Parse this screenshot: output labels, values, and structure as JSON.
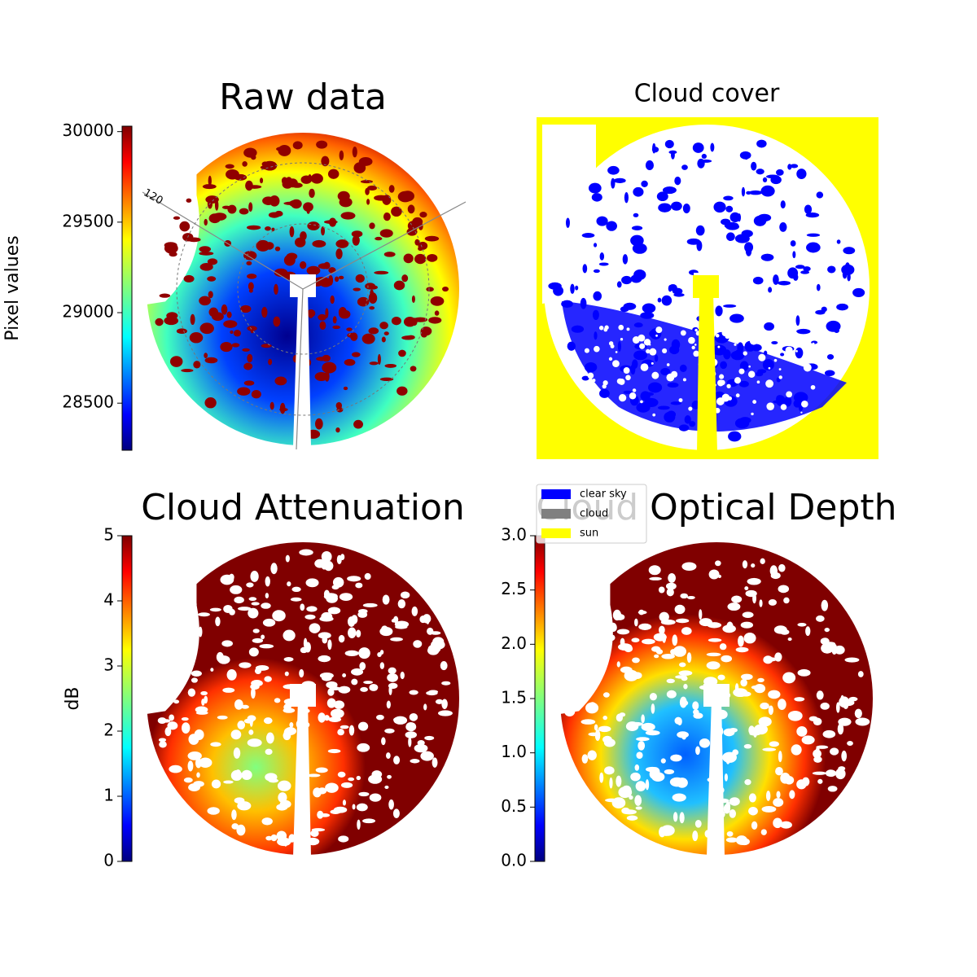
{
  "chart_data": [
    {
      "type": "image",
      "title": "Raw data",
      "colorbar_label": "Pixel values",
      "clim": [
        28240,
        30030
      ],
      "cticks": [
        28500,
        29000,
        29500,
        30000
      ],
      "annotations": [
        "120"
      ]
    },
    {
      "type": "categorical-image",
      "title": "Cloud cover",
      "legend": [
        {
          "name": "clear sky",
          "color": "#0000ff"
        },
        {
          "name": "cloud",
          "color": "#808080"
        },
        {
          "name": "sun",
          "color": "#ffff00"
        }
      ]
    },
    {
      "type": "image",
      "title": "Cloud Attenuation",
      "colorbar_label": "dB",
      "clim": [
        0,
        5
      ],
      "cticks": [
        0,
        1,
        2,
        3,
        4,
        5
      ]
    },
    {
      "type": "image",
      "title": "Cloud Optical Depth",
      "clim": [
        0,
        3
      ],
      "cticks": [
        {
          "value": 0,
          "label": "0.0"
        },
        {
          "value": 0.5,
          "label": "0.5"
        },
        {
          "value": 1,
          "label": "1.0"
        },
        {
          "value": 1.5,
          "label": "1.5"
        },
        {
          "value": 2,
          "label": "2.0"
        },
        {
          "value": 2.5,
          "label": "2.5"
        },
        {
          "value": 3,
          "label": "3.0"
        }
      ]
    }
  ]
}
